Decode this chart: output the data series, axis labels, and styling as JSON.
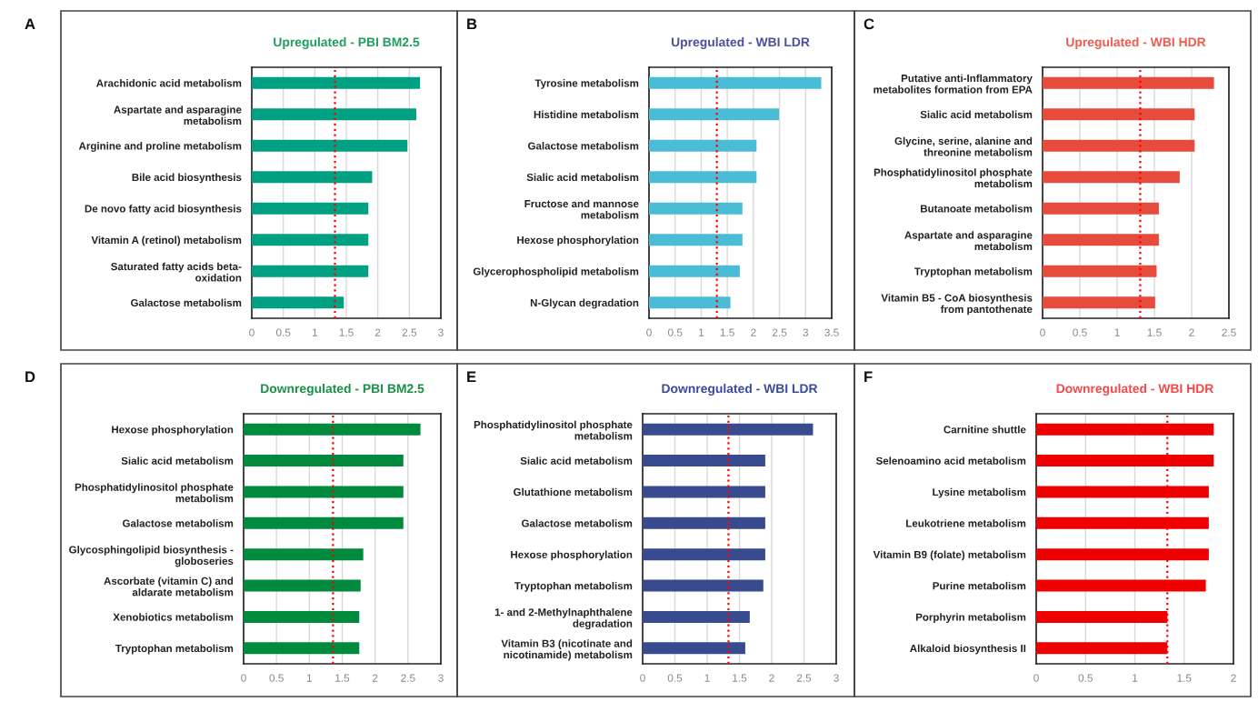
{
  "chart_data": [
    {
      "type": "bar",
      "orientation": "horizontal",
      "title": "Upregulated - PBI BM2.5",
      "annotations": [
        "A"
      ],
      "color": "#00a183",
      "categories": [
        "Arachidonic acid metabolism",
        "Aspartate and asparagine\nmetabolism",
        "Arginine and proline metabolism",
        "Bile acid biosynthesis",
        "De novo fatty acid biosynthesis",
        "Vitamin A (retinol) metabolism",
        "Saturated fatty acids beta-\noxidation",
        "Galactose metabolism"
      ],
      "values": [
        2.67,
        2.61,
        2.47,
        1.91,
        1.85,
        1.85,
        1.85,
        1.46
      ],
      "xlim": [
        0,
        3
      ],
      "xticks": [
        0,
        0.5,
        1,
        1.5,
        2,
        2.5,
        3
      ],
      "grid": "x",
      "ref_lines": [
        {
          "axis": "x",
          "value": 1.32,
          "color": "#ff0000",
          "line_style": "dotted"
        }
      ]
    },
    {
      "type": "bar",
      "orientation": "horizontal",
      "title": "Upregulated - WBI LDR",
      "annotations": [
        "B"
      ],
      "color": "#4bbcd6",
      "categories": [
        "Tyrosine metabolism",
        "Histidine metabolism",
        "Galactose metabolism",
        "Sialic acid metabolism",
        "Fructose and mannose\nmetabolism",
        "Hexose phosphorylation",
        "Glycerophospholipid metabolism",
        "N-Glycan degradation"
      ],
      "values": [
        3.3,
        2.49,
        2.06,
        2.06,
        1.79,
        1.79,
        1.74,
        1.56
      ],
      "xlim": [
        0,
        3.5
      ],
      "xticks": [
        0,
        0.5,
        1,
        1.5,
        2,
        2.5,
        3,
        3.5
      ],
      "grid": "x",
      "ref_lines": [
        {
          "axis": "x",
          "value": 1.3,
          "color": "#ff0000",
          "line_style": "dotted"
        }
      ]
    },
    {
      "type": "bar",
      "orientation": "horizontal",
      "title": "Upregulated - WBI HDR",
      "annotations": [
        "C"
      ],
      "color": "#e64b3b",
      "categories": [
        "Putative anti-Inflammatory\nmetabolites formation from EPA",
        "Sialic acid metabolism",
        "Glycine, serine, alanine and\nthreonine metabolism",
        "Phosphatidylinositol phosphate\nmetabolism",
        "Butanoate metabolism",
        "Aspartate and asparagine\nmetabolism",
        "Tryptophan metabolism",
        "Vitamin B5 - CoA biosynthesis\nfrom pantothenate"
      ],
      "values": [
        2.3,
        2.04,
        2.04,
        1.84,
        1.56,
        1.56,
        1.53,
        1.51
      ],
      "xlim": [
        0,
        2.5
      ],
      "xticks": [
        0,
        0.5,
        1,
        1.5,
        2,
        2.5
      ],
      "grid": "x",
      "ref_lines": [
        {
          "axis": "x",
          "value": 1.31,
          "color": "#ff0000",
          "line_style": "dotted"
        }
      ]
    },
    {
      "type": "bar",
      "orientation": "horizontal",
      "title": "Downregulated - PBI BM2.5",
      "annotations": [
        "D"
      ],
      "color": "#008a3e",
      "categories": [
        "Hexose phosphorylation",
        "Sialic acid metabolism",
        "Phosphatidylinositol phosphate\nmetabolism",
        "Galactose metabolism",
        "Glycosphingolipid biosynthesis -\ngloboseries",
        "Ascorbate (vitamin C) and\naldarate metabolism",
        "Xenobiotics metabolism",
        "Tryptophan metabolism"
      ],
      "values": [
        2.69,
        2.43,
        2.43,
        2.43,
        1.82,
        1.78,
        1.76,
        1.76
      ],
      "xlim": [
        0,
        3
      ],
      "xticks": [
        0,
        0.5,
        1,
        1.5,
        2,
        2.5,
        3
      ],
      "grid": "x",
      "ref_lines": [
        {
          "axis": "x",
          "value": 1.36,
          "color": "#ff0000",
          "line_style": "dotted"
        }
      ]
    },
    {
      "type": "bar",
      "orientation": "horizontal",
      "title": "Downregulated - WBI LDR",
      "annotations": [
        "E"
      ],
      "color": "#394b8f",
      "categories": [
        "Phosphatidylinositol phosphate\nmetabolism",
        "Sialic acid metabolism",
        "Glutathione metabolism",
        "Galactose metabolism",
        "Hexose phosphorylation",
        "Tryptophan metabolism",
        "1- and 2-Methylnaphthalene\ndegradation",
        "Vitamin B3 (nicotinate and\nnicotinamide) metabolism"
      ],
      "values": [
        2.64,
        1.9,
        1.9,
        1.9,
        1.9,
        1.87,
        1.66,
        1.59
      ],
      "xlim": [
        0,
        3
      ],
      "xticks": [
        0,
        0.5,
        1,
        1.5,
        2,
        2.5,
        3
      ],
      "grid": "x",
      "ref_lines": [
        {
          "axis": "x",
          "value": 1.33,
          "color": "#ff0000",
          "line_style": "dotted"
        }
      ]
    },
    {
      "type": "bar",
      "orientation": "horizontal",
      "title": "Downregulated - WBI HDR",
      "annotations": [
        "F"
      ],
      "color": "#ee0000",
      "categories": [
        "Carnitine shuttle",
        "Selenoamino acid metabolism",
        "Lysine metabolism",
        "Leukotriene metabolism",
        "Vitamin B9 (folate) metabolism",
        "Purine metabolism",
        "Porphyrin metabolism",
        "Alkaloid biosynthesis II"
      ],
      "values": [
        1.8,
        1.8,
        1.75,
        1.75,
        1.75,
        1.72,
        1.33,
        1.33
      ],
      "xlim": [
        0,
        2
      ],
      "xticks": [
        0,
        0.5,
        1,
        1.5,
        2
      ],
      "grid": "x",
      "ref_lines": [
        {
          "axis": "x",
          "value": 1.33,
          "color": "#ff0000",
          "line_style": "dotted"
        }
      ]
    }
  ]
}
